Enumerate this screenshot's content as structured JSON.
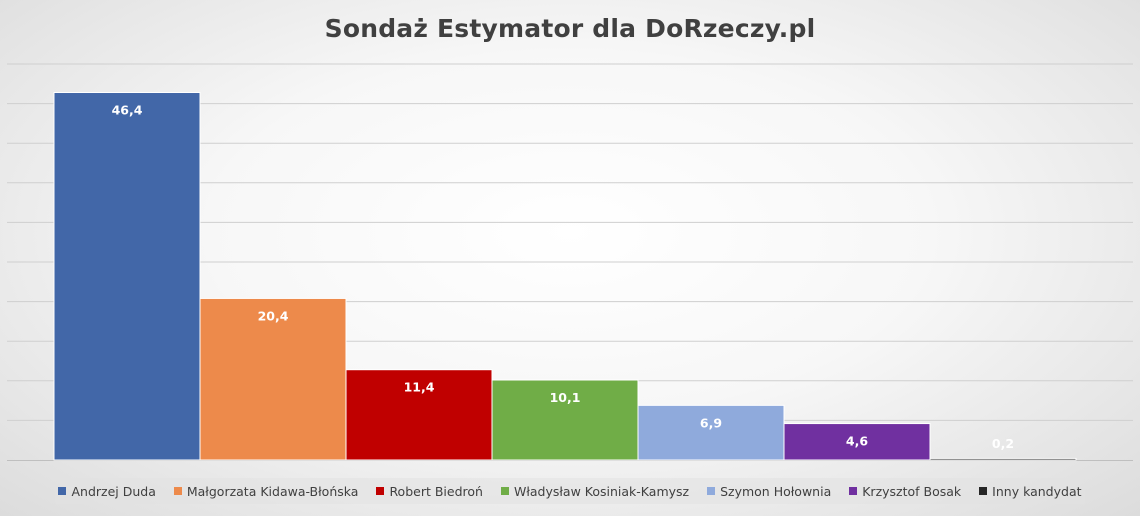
{
  "chart_data": {
    "type": "bar",
    "title": "Sondaż Estymator dla DoRzeczy.pl",
    "xlabel": "",
    "ylabel": "",
    "ylim": [
      0,
      50
    ],
    "grid": true,
    "legend_position": "bottom",
    "categories": [
      "Andrzej Duda",
      "Małgorzata Kidawa-Błońska",
      "Robert Biedroń",
      "Władysław Kosiniak-Kamysz",
      "Szymon Hołownia",
      "Krzysztof Bosak",
      "Inny kandydat"
    ],
    "values": [
      46.4,
      20.4,
      11.4,
      10.1,
      6.9,
      4.6,
      0.2
    ],
    "value_labels": [
      "46,4",
      "20,4",
      "11,4",
      "10,1",
      "6,9",
      "4,6",
      "0,2"
    ],
    "colors": [
      "#4267A8",
      "#ED8A4B",
      "#C00000",
      "#70AD47",
      "#8FAADC",
      "#7030A0",
      "#262626"
    ],
    "label_colors": [
      "#ffffff",
      "#ffffff",
      "#ffffff",
      "#ffffff",
      "#ffffff",
      "#ffffff",
      "#ffffff"
    ]
  }
}
